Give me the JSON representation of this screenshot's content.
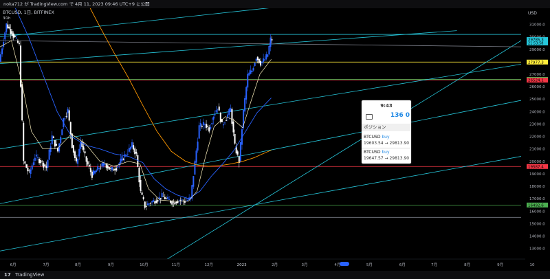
{
  "header": {
    "publish_line": "noka712 が TradingView.com で 4月 11, 2023 09:46 UTC+9 に公開",
    "symbol_line": "BTCUSD, 1日, BITFINEX",
    "sub_label": "3⁄1h"
  },
  "footer": {
    "logo": "17",
    "brand": "TradingView"
  },
  "popup": {
    "time": "9:43",
    "count": "136 0",
    "section": "ポジション",
    "positions": [
      {
        "symbol": "BTCUSD",
        "side": "buy",
        "text": "19603.54 → 29813.90"
      },
      {
        "symbol": "BTCUSD",
        "side": "buy",
        "text": "19647.57 → 29813.90"
      }
    ]
  },
  "colors": {
    "up": "#2962ff",
    "down": "#ffffff",
    "sma_short": "#fff3c0",
    "sma_mid": "#2962ff",
    "sma_long": "#ff9800",
    "trend": "#26c6da",
    "level_yellow": "#ffeb3b",
    "level_red": "#f23645",
    "level_green": "#4caf50"
  },
  "chart_data": {
    "type": "candlestick",
    "currency_label": "USD",
    "y_ticks": [
      13000,
      14000,
      15000,
      16000,
      17000,
      18000,
      19000,
      20000,
      21000,
      22000,
      23000,
      24000,
      25000,
      26000,
      27000,
      28000,
      29000,
      30000,
      31000
    ],
    "y_tick_labels": [
      "13000.0",
      "14000.0",
      "15000.0",
      "16000.0",
      "17000.0",
      "18000.0",
      "19000.0",
      "20000.0",
      "21000.0",
      "22000.0",
      "23000.0",
      "24000.0",
      "25000.0",
      "26000.0",
      "27000.0",
      "28000.0",
      "29000.0",
      "30000.0",
      "31000.0"
    ],
    "ylim": [
      12150,
      32300
    ],
    "x_months": [
      "6月",
      "7月",
      "8月",
      "9月",
      "10月",
      "11月",
      "12月",
      "2023",
      "2月",
      "3月",
      "4月",
      "5月",
      "6月",
      "7月",
      "8月",
      "9月",
      "10"
    ],
    "price_labels": [
      {
        "text": "29785.3",
        "sub": "21:53:58",
        "value": 29785.3,
        "color": "#26c6da"
      },
      {
        "text": "27977.3",
        "value": 27977.3,
        "color": "#ffeb3b"
      },
      {
        "text": "26589.4",
        "value": 26589.4,
        "color": "#4caf50"
      },
      {
        "text": "26524.1",
        "value": 26524.1,
        "color": "#f23645"
      },
      {
        "text": "19587.4",
        "value": 19587.4,
        "color": "#f23645"
      },
      {
        "text": "16492.6",
        "value": 16492.6,
        "color": "#4caf50"
      }
    ],
    "horizontal_levels": [
      {
        "value": 27977.3,
        "color": "#ffeb3b"
      },
      {
        "value": 26524.1,
        "color": "#f23645"
      },
      {
        "value": 26589.4,
        "color": "#4caf50"
      },
      {
        "value": 19587.4,
        "color": "#f23645"
      },
      {
        "value": 16492.6,
        "color": "#4caf50"
      },
      {
        "value": 15500,
        "color": "#787b86"
      },
      {
        "value": 30200,
        "color": "#26c6da"
      }
    ],
    "trendlines": [
      {
        "t1": 0,
        "p1": 30000,
        "t2": 365,
        "p2": 34500,
        "color": "#26c6da"
      },
      {
        "t1": 0,
        "p1": 27850,
        "t2": 320,
        "p2": 30500,
        "color": "#26c6da"
      },
      {
        "t1": 0,
        "p1": 21000,
        "t2": 365,
        "p2": 27800,
        "color": "#26c6da"
      },
      {
        "t1": 0,
        "p1": 16600,
        "t2": 365,
        "p2": 24900,
        "color": "#26c6da"
      },
      {
        "t1": 0,
        "p1": 12800,
        "t2": 365,
        "p2": 20400,
        "color": "#26c6da"
      },
      {
        "t1": 108,
        "p1": 11500,
        "t2": 365,
        "p2": 29700,
        "color": "#26c6da"
      },
      {
        "t1": 0,
        "p1": 29700,
        "t2": 365,
        "p2": 29200,
        "color": "#787b86"
      }
    ],
    "ohlc_keypoints": [
      [
        0,
        28000
      ],
      [
        5,
        31000
      ],
      [
        10,
        30100
      ],
      [
        14,
        29300
      ],
      [
        17,
        20000
      ],
      [
        21,
        19000
      ],
      [
        25,
        20400
      ],
      [
        29,
        20000
      ],
      [
        33,
        19500
      ],
      [
        37,
        22000
      ],
      [
        41,
        20800
      ],
      [
        45,
        23400
      ],
      [
        48,
        24100
      ],
      [
        51,
        21300
      ],
      [
        54,
        19800
      ],
      [
        57,
        21600
      ],
      [
        61,
        20000
      ],
      [
        65,
        18900
      ],
      [
        70,
        19500
      ],
      [
        74,
        19800
      ],
      [
        78,
        19300
      ],
      [
        82,
        19500
      ],
      [
        86,
        20200
      ],
      [
        89,
        20600
      ],
      [
        93,
        21300
      ],
      [
        96,
        20500
      ],
      [
        99,
        17500
      ],
      [
        102,
        16400
      ],
      [
        106,
        16700
      ],
      [
        110,
        16900
      ],
      [
        114,
        17200
      ],
      [
        118,
        16900
      ],
      [
        122,
        16700
      ],
      [
        126,
        16900
      ],
      [
        130,
        16800
      ],
      [
        134,
        17000
      ],
      [
        137,
        19900
      ],
      [
        140,
        22800
      ],
      [
        144,
        23000
      ],
      [
        147,
        22600
      ],
      [
        150,
        23700
      ],
      [
        153,
        24400
      ],
      [
        156,
        22900
      ],
      [
        159,
        23500
      ],
      [
        162,
        24200
      ],
      [
        165,
        21200
      ],
      [
        168,
        20000
      ],
      [
        171,
        24000
      ],
      [
        174,
        26900
      ],
      [
        177,
        27300
      ],
      [
        180,
        28400
      ],
      [
        183,
        27900
      ],
      [
        186,
        28200
      ],
      [
        188,
        28600
      ],
      [
        190,
        29800
      ]
    ],
    "sma_short": [
      [
        0,
        29200
      ],
      [
        8,
        29700
      ],
      [
        15,
        26500
      ],
      [
        22,
        22400
      ],
      [
        30,
        21000
      ],
      [
        40,
        21000
      ],
      [
        50,
        22200
      ],
      [
        60,
        21400
      ],
      [
        70,
        20000
      ],
      [
        80,
        19600
      ],
      [
        90,
        20000
      ],
      [
        98,
        19800
      ],
      [
        104,
        17800
      ],
      [
        112,
        16900
      ],
      [
        122,
        16800
      ],
      [
        132,
        16800
      ],
      [
        138,
        17600
      ],
      [
        144,
        20400
      ],
      [
        150,
        22800
      ],
      [
        158,
        23600
      ],
      [
        164,
        23300
      ],
      [
        170,
        22700
      ],
      [
        176,
        24900
      ],
      [
        182,
        27000
      ],
      [
        190,
        28200
      ]
    ],
    "sma_mid": [
      [
        0,
        33000
      ],
      [
        10,
        32500
      ],
      [
        20,
        30000
      ],
      [
        30,
        27000
      ],
      [
        40,
        24000
      ],
      [
        50,
        22000
      ],
      [
        60,
        21300
      ],
      [
        70,
        21000
      ],
      [
        80,
        20600
      ],
      [
        90,
        20400
      ],
      [
        100,
        19900
      ],
      [
        108,
        18600
      ],
      [
        116,
        17800
      ],
      [
        124,
        17300
      ],
      [
        132,
        17000
      ],
      [
        140,
        17600
      ],
      [
        148,
        18800
      ],
      [
        156,
        19800
      ],
      [
        164,
        20900
      ],
      [
        172,
        22400
      ],
      [
        180,
        23900
      ],
      [
        190,
        25100
      ]
    ],
    "sma_long": [
      [
        60,
        33000
      ],
      [
        70,
        30800
      ],
      [
        80,
        28700
      ],
      [
        90,
        26700
      ],
      [
        100,
        24500
      ],
      [
        110,
        22400
      ],
      [
        120,
        20800
      ],
      [
        130,
        20000
      ],
      [
        138,
        19700
      ],
      [
        146,
        19600
      ],
      [
        154,
        19650
      ],
      [
        162,
        19800
      ],
      [
        170,
        20000
      ],
      [
        178,
        20300
      ],
      [
        184,
        20600
      ],
      [
        190,
        20900
      ]
    ]
  }
}
